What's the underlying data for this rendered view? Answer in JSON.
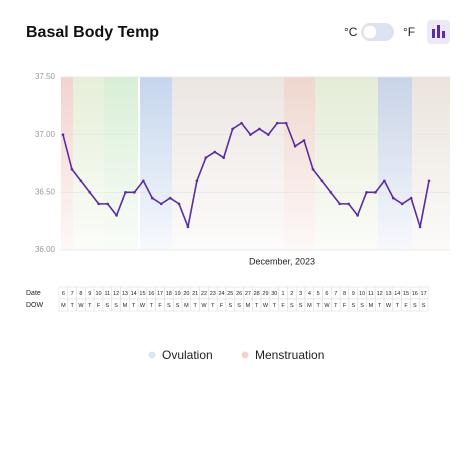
{
  "header": {
    "title": "Basal Body Temp",
    "celsius": "°C",
    "fahrenheit": "°F"
  },
  "chart_data": {
    "type": "line",
    "x_label": "December, 2023",
    "categories": [
      "6",
      "7",
      "8",
      "9",
      "10",
      "11",
      "12",
      "13",
      "14",
      "15",
      "16",
      "17",
      "18",
      "19",
      "20",
      "21",
      "22",
      "23",
      "24",
      "25",
      "26",
      "27",
      "28",
      "29",
      "30",
      "1",
      "2",
      "3",
      "4",
      "5",
      "6",
      "7",
      "8",
      "9",
      "10",
      "11",
      "12",
      "13",
      "14",
      "15",
      "16",
      "17"
    ],
    "series": [
      {
        "name": "Temperature",
        "color": "#5a2ca0",
        "values": [
          37.0,
          36.7,
          36.6,
          36.5,
          36.4,
          36.4,
          36.3,
          36.5,
          36.5,
          36.6,
          36.45,
          36.4,
          36.45,
          36.4,
          36.2,
          36.6,
          36.8,
          36.85,
          36.8,
          37.05,
          37.1,
          37.0,
          37.05,
          37.0,
          37.1,
          37.1,
          36.9,
          36.95,
          36.7,
          36.6,
          36.5,
          36.4,
          36.4,
          36.3,
          36.5,
          36.5,
          36.6,
          36.45,
          36.4,
          36.45,
          36.2,
          36.6
        ]
      }
    ],
    "ylim": [
      36.0,
      37.5
    ],
    "yticks": [
      {
        "value": 36.0,
        "label": "36.00"
      },
      {
        "value": 36.5,
        "label": "36.50"
      },
      {
        "value": 37.0,
        "label": "37.00"
      },
      {
        "value": 37.5,
        "label": "37.50"
      }
    ],
    "grid": true,
    "legend": [
      {
        "name": "Ovulation",
        "color": "#dbe6f5"
      },
      {
        "name": "Menstruation",
        "color": "#f3d3cf"
      }
    ]
  },
  "table": {
    "date_label": "Date",
    "dow_label": "DOW",
    "dow": [
      "M",
      "T",
      "W",
      "T",
      "F",
      "S",
      "S",
      "M",
      "T",
      "W",
      "T",
      "F",
      "S",
      "S",
      "M",
      "T",
      "W",
      "T",
      "F",
      "S",
      "S",
      "M",
      "T",
      "W",
      "T",
      "F",
      "S",
      "S",
      "M",
      "T",
      "W",
      "T",
      "F",
      "S",
      "S",
      "M",
      "T",
      "W",
      "T",
      "F",
      "S",
      "S"
    ]
  }
}
